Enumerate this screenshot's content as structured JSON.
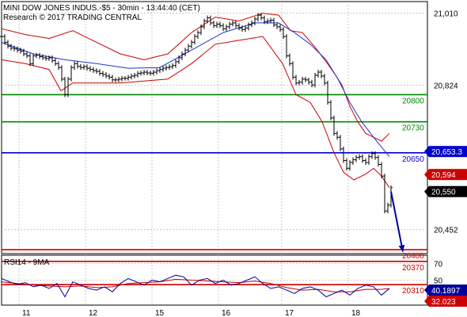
{
  "header": {
    "title": "MINI DOW JONES INDUS.-$5 - 30min - 13:44:40 (CET)",
    "subtitle": "Research © 2017 TRADING CENTRAL"
  },
  "chart_data": {
    "type": "line",
    "price_axis": {
      "ylim": [
        20390,
        21040
      ],
      "ticks": [
        "21,010",
        "20,824",
        "20,452"
      ]
    },
    "x_tick_labels": [
      "11",
      "12",
      "15",
      "16",
      "17",
      "18"
    ],
    "price_series": [
      [
        0,
        20950
      ],
      [
        4,
        20935
      ],
      [
        8,
        20925
      ],
      [
        12,
        20920
      ],
      [
        16,
        20918
      ],
      [
        20,
        20915
      ],
      [
        24,
        20912
      ],
      [
        28,
        20905
      ],
      [
        32,
        20900
      ],
      [
        36,
        20880
      ],
      [
        40,
        20900
      ],
      [
        44,
        20902
      ],
      [
        48,
        20898
      ],
      [
        52,
        20895
      ],
      [
        56,
        20893
      ],
      [
        60,
        20895
      ],
      [
        64,
        20888
      ],
      [
        68,
        20880
      ],
      [
        72,
        20870
      ],
      [
        76,
        20840
      ],
      [
        80,
        20800
      ],
      [
        84,
        20840
      ],
      [
        88,
        20870
      ],
      [
        92,
        20880
      ],
      [
        96,
        20873
      ],
      [
        100,
        20870
      ],
      [
        104,
        20872
      ],
      [
        108,
        20868
      ],
      [
        112,
        20865
      ],
      [
        116,
        20862
      ],
      [
        120,
        20860
      ],
      [
        124,
        20855
      ],
      [
        128,
        20852
      ],
      [
        132,
        20848
      ],
      [
        136,
        20845
      ],
      [
        140,
        20838
      ],
      [
        144,
        20838
      ],
      [
        148,
        20840
      ],
      [
        152,
        20842
      ],
      [
        156,
        20842
      ],
      [
        160,
        20845
      ],
      [
        164,
        20848
      ],
      [
        168,
        20850
      ],
      [
        172,
        20855
      ],
      [
        176,
        20856
      ],
      [
        180,
        20858
      ],
      [
        184,
        20856
      ],
      [
        188,
        20855
      ],
      [
        192,
        20858
      ],
      [
        196,
        20862
      ],
      [
        200,
        20865
      ],
      [
        204,
        20868
      ],
      [
        208,
        20870
      ],
      [
        212,
        20872
      ],
      [
        216,
        20875
      ],
      [
        220,
        20885
      ],
      [
        224,
        20895
      ],
      [
        228,
        20905
      ],
      [
        232,
        20915
      ],
      [
        236,
        20925
      ],
      [
        240,
        20935
      ],
      [
        244,
        20950
      ],
      [
        248,
        20960
      ],
      [
        252,
        20975
      ],
      [
        256,
        20990
      ],
      [
        260,
        20998
      ],
      [
        264,
        20985
      ],
      [
        268,
        20978
      ],
      [
        272,
        20982
      ],
      [
        276,
        20978
      ],
      [
        280,
        20970
      ],
      [
        284,
        20975
      ],
      [
        288,
        20982
      ],
      [
        292,
        20985
      ],
      [
        296,
        20978
      ],
      [
        300,
        20972
      ],
      [
        304,
        20968
      ],
      [
        308,
        20972
      ],
      [
        312,
        20980
      ],
      [
        316,
        20985
      ],
      [
        320,
        20995
      ],
      [
        324,
        21005
      ],
      [
        328,
        20998
      ],
      [
        332,
        20988
      ],
      [
        336,
        20990
      ],
      [
        340,
        20992
      ],
      [
        344,
        20980
      ],
      [
        348,
        20975
      ],
      [
        352,
        20968
      ],
      [
        356,
        20950
      ],
      [
        360,
        20900
      ],
      [
        364,
        20880
      ],
      [
        368,
        20845
      ],
      [
        372,
        20830
      ],
      [
        376,
        20832
      ],
      [
        380,
        20840
      ],
      [
        384,
        20838
      ],
      [
        388,
        20832
      ],
      [
        392,
        20825
      ],
      [
        396,
        20850
      ],
      [
        400,
        20858
      ],
      [
        404,
        20848
      ],
      [
        408,
        20830
      ],
      [
        412,
        20780
      ],
      [
        416,
        20740
      ],
      [
        420,
        20700
      ],
      [
        424,
        20690
      ],
      [
        428,
        20660
      ],
      [
        432,
        20630
      ],
      [
        436,
        20610
      ],
      [
        440,
        20625
      ],
      [
        444,
        20632
      ],
      [
        448,
        20638
      ],
      [
        452,
        20640
      ],
      [
        456,
        20630
      ],
      [
        460,
        20625
      ],
      [
        464,
        20640
      ],
      [
        468,
        20648
      ],
      [
        472,
        20638
      ],
      [
        476,
        20620
      ],
      [
        480,
        20590
      ],
      [
        484,
        20500
      ],
      [
        488,
        20515
      ],
      [
        492,
        20560
      ]
    ],
    "bollinger_upper": [
      [
        0,
        20970
      ],
      [
        30,
        20955
      ],
      [
        60,
        20945
      ],
      [
        90,
        20965
      ],
      [
        120,
        20935
      ],
      [
        150,
        20905
      ],
      [
        180,
        20890
      ],
      [
        210,
        20905
      ],
      [
        240,
        20960
      ],
      [
        270,
        21000
      ],
      [
        300,
        20990
      ],
      [
        330,
        21010
      ],
      [
        350,
        21005
      ],
      [
        365,
        20965
      ],
      [
        380,
        20960
      ],
      [
        395,
        20925
      ],
      [
        410,
        20885
      ],
      [
        422,
        20850
      ],
      [
        430,
        20825
      ],
      [
        440,
        20770
      ],
      [
        450,
        20730
      ],
      [
        460,
        20700
      ],
      [
        470,
        20690
      ],
      [
        480,
        20680
      ],
      [
        490,
        20700
      ]
    ],
    "bollinger_lower": [
      [
        0,
        20890
      ],
      [
        30,
        20880
      ],
      [
        60,
        20865
      ],
      [
        75,
        20810
      ],
      [
        90,
        20830
      ],
      [
        120,
        20830
      ],
      [
        150,
        20830
      ],
      [
        180,
        20835
      ],
      [
        210,
        20840
      ],
      [
        240,
        20880
      ],
      [
        270,
        20930
      ],
      [
        300,
        20940
      ],
      [
        330,
        20950
      ],
      [
        355,
        20880
      ],
      [
        372,
        20800
      ],
      [
        390,
        20780
      ],
      [
        405,
        20730
      ],
      [
        420,
        20650
      ],
      [
        432,
        20600
      ],
      [
        445,
        20580
      ],
      [
        460,
        20595
      ],
      [
        470,
        20610
      ],
      [
        480,
        20590
      ],
      [
        490,
        20560
      ]
    ],
    "moving_average": [
      [
        0,
        20935
      ],
      [
        40,
        20905
      ],
      [
        80,
        20890
      ],
      [
        120,
        20880
      ],
      [
        160,
        20868
      ],
      [
        200,
        20870
      ],
      [
        240,
        20915
      ],
      [
        280,
        20960
      ],
      [
        320,
        20985
      ],
      [
        350,
        20985
      ],
      [
        370,
        20960
      ],
      [
        390,
        20930
      ],
      [
        410,
        20890
      ],
      [
        425,
        20840
      ],
      [
        440,
        20780
      ],
      [
        455,
        20730
      ],
      [
        470,
        20690
      ],
      [
        482,
        20660
      ],
      [
        490,
        20640
      ]
    ],
    "price_badges": [
      {
        "label": "20,653.3",
        "value": 20653.3,
        "color": "#0000cc"
      },
      {
        "label": "20,594",
        "value": 20594,
        "color": "#cc0000"
      },
      {
        "label": "20,550",
        "value": 20550,
        "color": "#000000"
      }
    ],
    "levels": [
      {
        "value": 20800,
        "label": "20800",
        "color": "#008800"
      },
      {
        "value": 20730,
        "label": "20730",
        "color": "#008800"
      },
      {
        "value": 20650,
        "label": "20650",
        "color": "#0000cc"
      },
      {
        "value": 20400,
        "label": "20400",
        "color": "#cc0000"
      },
      {
        "value": 20370,
        "label": "20370",
        "color": "#cc0000"
      },
      {
        "value": 20310,
        "label": "20310",
        "color": "#cc0000"
      }
    ],
    "arrow": {
      "from": [
        492,
        20550
      ],
      "to": [
        507,
        20395
      ],
      "color": "#000099"
    },
    "rsi": {
      "label": "RSI14 - 9MA",
      "ylim": [
        20,
        80
      ],
      "tick_labels": [
        {
          "value": 70,
          "label": "70"
        },
        {
          "value": 50,
          "label": "50"
        }
      ],
      "rsi_series": [
        [
          0,
          52
        ],
        [
          10,
          48
        ],
        [
          20,
          45
        ],
        [
          30,
          47
        ],
        [
          40,
          42
        ],
        [
          50,
          44
        ],
        [
          60,
          40
        ],
        [
          70,
          46
        ],
        [
          80,
          30
        ],
        [
          90,
          48
        ],
        [
          100,
          44
        ],
        [
          110,
          40
        ],
        [
          120,
          38
        ],
        [
          130,
          42
        ],
        [
          140,
          36
        ],
        [
          150,
          46
        ],
        [
          160,
          52
        ],
        [
          170,
          48
        ],
        [
          180,
          44
        ],
        [
          190,
          50
        ],
        [
          200,
          48
        ],
        [
          210,
          52
        ],
        [
          220,
          56
        ],
        [
          230,
          54
        ],
        [
          240,
          44
        ],
        [
          250,
          50
        ],
        [
          260,
          52
        ],
        [
          270,
          46
        ],
        [
          280,
          50
        ],
        [
          290,
          44
        ],
        [
          300,
          46
        ],
        [
          310,
          50
        ],
        [
          320,
          54
        ],
        [
          330,
          46
        ],
        [
          340,
          40
        ],
        [
          350,
          42
        ],
        [
          360,
          38
        ],
        [
          370,
          34
        ],
        [
          380,
          40
        ],
        [
          390,
          42
        ],
        [
          400,
          38
        ],
        [
          410,
          30
        ],
        [
          420,
          34
        ],
        [
          430,
          38
        ],
        [
          440,
          32
        ],
        [
          450,
          40
        ],
        [
          460,
          44
        ],
        [
          470,
          42
        ],
        [
          480,
          32
        ],
        [
          490,
          40
        ]
      ],
      "ma_series": [
        [
          0,
          48
        ],
        [
          20,
          46
        ],
        [
          40,
          44
        ],
        [
          60,
          43
        ],
        [
          80,
          42
        ],
        [
          100,
          43
        ],
        [
          120,
          41
        ],
        [
          140,
          42
        ],
        [
          160,
          46
        ],
        [
          180,
          47
        ],
        [
          200,
          48
        ],
        [
          220,
          51
        ],
        [
          240,
          50
        ],
        [
          260,
          49
        ],
        [
          280,
          48
        ],
        [
          300,
          47
        ],
        [
          320,
          49
        ],
        [
          340,
          46
        ],
        [
          360,
          41
        ],
        [
          380,
          38
        ],
        [
          400,
          39
        ],
        [
          420,
          36
        ],
        [
          440,
          36
        ],
        [
          460,
          39
        ],
        [
          480,
          39
        ],
        [
          490,
          40
        ]
      ],
      "badges": [
        {
          "label": "40.1897",
          "value": 40.19,
          "color": "#000099"
        },
        {
          "label": "32.023",
          "value": 32.02,
          "color": "#cc0000"
        }
      ]
    }
  }
}
